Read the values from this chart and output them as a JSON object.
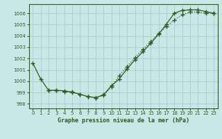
{
  "title": "Graphe pression niveau de la mer (hPa)",
  "bg_color": "#c8e8e8",
  "grid_color": "#aacccc",
  "line_color": "#2d5a1b",
  "xlim": [
    -0.5,
    23.5
  ],
  "ylim": [
    997.6,
    1006.8
  ],
  "yticks": [
    998,
    999,
    1000,
    1001,
    1002,
    1003,
    1004,
    1005,
    1006
  ],
  "xticks": [
    0,
    1,
    2,
    3,
    4,
    5,
    6,
    7,
    8,
    9,
    10,
    11,
    12,
    13,
    14,
    15,
    16,
    17,
    18,
    19,
    20,
    21,
    22,
    23
  ],
  "line1_x": [
    0,
    1,
    2,
    3,
    4,
    5,
    6,
    7,
    8,
    9,
    10,
    11,
    12,
    13,
    14,
    15,
    16,
    17,
    18,
    19,
    20,
    21,
    22,
    23
  ],
  "line1_y": [
    1001.6,
    1000.2,
    999.2,
    999.2,
    999.15,
    999.05,
    998.85,
    998.65,
    998.55,
    998.8,
    999.6,
    1000.2,
    1001.1,
    1001.9,
    1002.6,
    1003.35,
    1004.15,
    1005.05,
    1006.0,
    1006.25,
    1006.3,
    1006.3,
    1006.15,
    1006.0
  ],
  "line2_x": [
    2,
    3,
    4,
    5,
    6,
    7,
    8,
    9,
    10,
    11,
    12,
    13,
    14,
    15,
    16,
    17,
    18,
    19,
    20,
    21,
    22,
    23
  ],
  "line2_y": [
    999.2,
    999.2,
    999.1,
    999.0,
    998.85,
    998.65,
    998.55,
    998.75,
    999.5,
    1000.5,
    1001.3,
    1002.1,
    1002.8,
    1003.5,
    1004.2,
    1004.85,
    1005.4,
    1005.85,
    1006.1,
    1006.1,
    1006.0,
    1006.0
  ]
}
